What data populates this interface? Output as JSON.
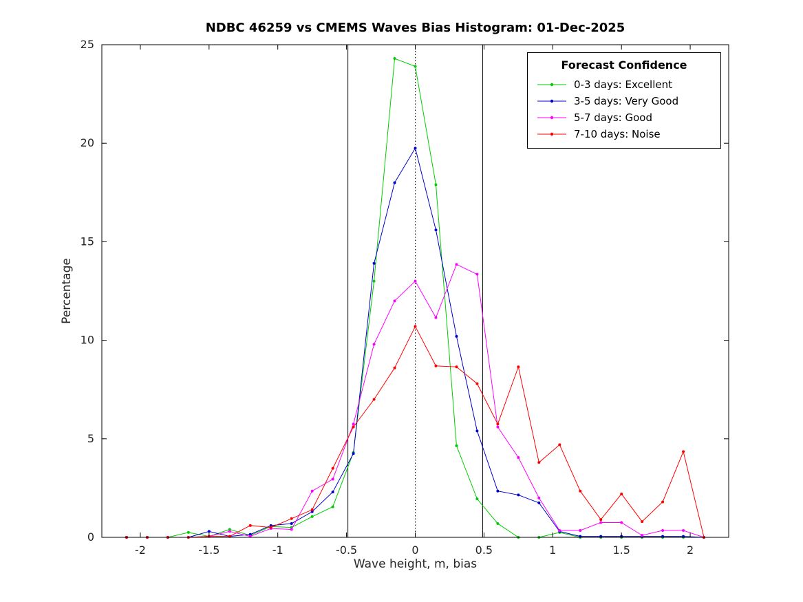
{
  "chart_data": {
    "type": "line",
    "title": "NDBC 46259 vs CMEMS Waves Bias Histogram: 01-Dec-2025",
    "xlabel": "Wave height, m, bias",
    "ylabel": "Percentage",
    "xlim": [
      -2.28,
      2.28
    ],
    "ylim": [
      0,
      25
    ],
    "grid": false,
    "xticks": {
      "values": [
        -2,
        -1.5,
        -1,
        -0.5,
        0,
        0.5,
        1,
        1.5,
        2
      ],
      "labels": [
        "-2",
        "-1.5",
        "-1",
        "-0.5",
        "0",
        "0.5",
        "1",
        "1.5",
        "2"
      ]
    },
    "yticks": {
      "values": [
        0,
        5,
        10,
        15,
        20,
        25
      ],
      "labels": [
        "0",
        "5",
        "10",
        "15",
        "20",
        "25"
      ]
    },
    "x": [
      -2.1,
      -1.95,
      -1.8,
      -1.65,
      -1.5,
      -1.35,
      -1.2,
      -1.05,
      -0.9,
      -0.75,
      -0.6,
      -0.45,
      -0.3,
      -0.15,
      0,
      0.15,
      0.3,
      0.45,
      0.6,
      0.75,
      0.9,
      1.05,
      1.2,
      1.35,
      1.5,
      1.65,
      1.8,
      1.95,
      2.1
    ],
    "series": [
      {
        "id": "0-3-days",
        "label": "0-3 days: Excellent",
        "color": "#00cc00",
        "values": [
          0,
          0,
          0,
          0.25,
          0.05,
          0.4,
          0.1,
          0.55,
          0.5,
          1.05,
          1.55,
          4.3,
          13.0,
          24.3,
          23.9,
          17.9,
          4.65,
          1.95,
          0.7,
          0,
          0,
          0.25,
          0,
          0,
          0,
          0,
          0,
          0,
          0
        ]
      },
      {
        "id": "3-5-days",
        "label": "3-5 days: Very Good",
        "color": "#0000cc",
        "values": [
          0,
          0,
          0,
          0,
          0.3,
          0.05,
          0.15,
          0.6,
          0.7,
          1.3,
          2.3,
          4.25,
          13.9,
          18.0,
          19.75,
          15.6,
          10.2,
          5.4,
          2.35,
          2.15,
          1.75,
          0.3,
          0.05,
          0.05,
          0.05,
          0.05,
          0.05,
          0.05,
          0
        ]
      },
      {
        "id": "5-7-days",
        "label": "5-7 days: Good",
        "color": "#ff00ff",
        "values": [
          0,
          0,
          0,
          0,
          0.05,
          0.3,
          0.05,
          0.45,
          0.4,
          2.35,
          2.95,
          5.75,
          9.8,
          12.0,
          13.0,
          11.15,
          13.85,
          13.35,
          5.6,
          4.05,
          2.0,
          0.35,
          0.35,
          0.75,
          0.75,
          0.1,
          0.35,
          0.35,
          0
        ]
      },
      {
        "id": "7-10-days",
        "label": "7-10 days: Noise",
        "color": "#ff0000",
        "values": [
          0,
          0,
          0,
          0,
          0.05,
          0.05,
          0.6,
          0.5,
          0.95,
          1.4,
          3.5,
          5.6,
          7.0,
          8.6,
          10.7,
          8.7,
          8.65,
          7.8,
          5.75,
          8.65,
          3.8,
          4.7,
          2.35,
          0.9,
          2.2,
          0.8,
          1.8,
          4.35,
          0
        ]
      }
    ],
    "ref_lines": [
      {
        "x": -0.49,
        "style": "solid",
        "color": "#000000",
        "name": "lower-threshold-line"
      },
      {
        "x": 0,
        "style": "dotted",
        "color": "#000000",
        "name": "zero-bias-line"
      },
      {
        "x": 0.49,
        "style": "solid",
        "color": "#000000",
        "name": "upper-threshold-line"
      }
    ],
    "legend": {
      "title": "Forecast Confidence",
      "position": "top-right"
    }
  }
}
